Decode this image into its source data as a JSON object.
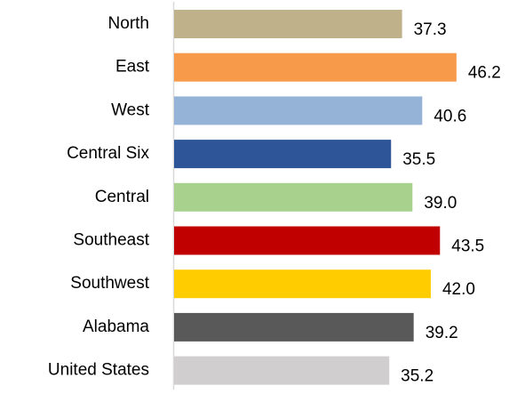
{
  "chart_data": {
    "type": "bar",
    "orientation": "horizontal",
    "categories": [
      "North",
      "East",
      "West",
      "Central Six",
      "Central",
      "Southeast",
      "Southwest",
      "Alabama",
      "United States"
    ],
    "values": [
      37.3,
      46.2,
      40.6,
      35.5,
      39.0,
      43.5,
      42.0,
      39.2,
      35.2
    ],
    "value_labels": [
      "37.3",
      "46.2",
      "40.6",
      "35.5",
      "39.0",
      "43.5",
      "42.0",
      "39.2",
      "35.2"
    ],
    "colors": [
      "#bfb28a",
      "#f79a4a",
      "#95b3d7",
      "#2e5597",
      "#a9d18e",
      "#c00000",
      "#ffcc00",
      "#595959",
      "#d0cece"
    ]
  }
}
